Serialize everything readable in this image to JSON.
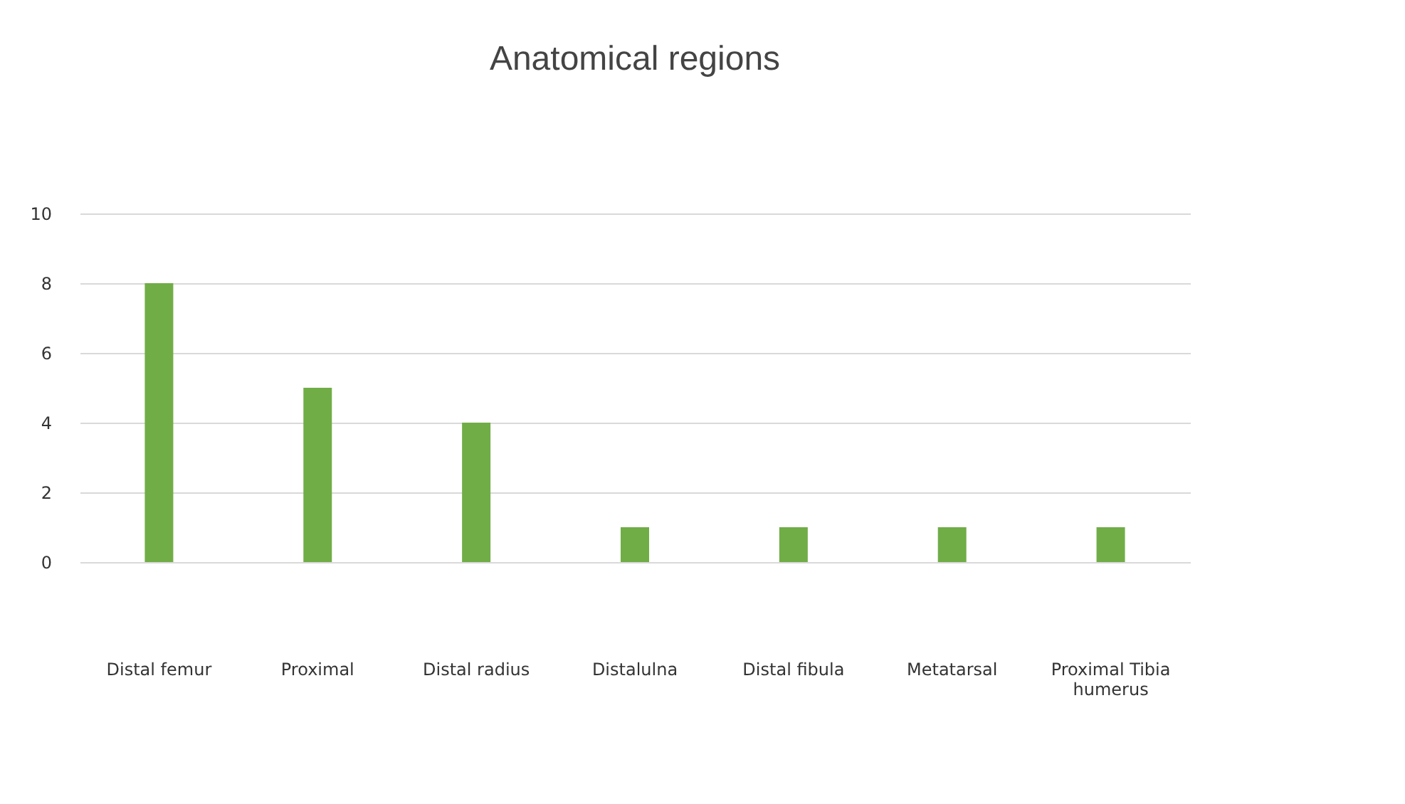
{
  "chart_data": {
    "type": "bar",
    "title": "Anatomical regions",
    "categories": [
      "Distal femur",
      "Proximal",
      "Distal  radius",
      "Distalulna",
      "Distal fibula",
      "Metatarsal",
      "Proximal Tibia humerus"
    ],
    "values": [
      8,
      5,
      4,
      1,
      1,
      1,
      1
    ],
    "color": "#70ad47",
    "ylim": [
      0,
      10
    ],
    "yticks": [
      0,
      2,
      4,
      6,
      8,
      10
    ],
    "grid": "y"
  }
}
